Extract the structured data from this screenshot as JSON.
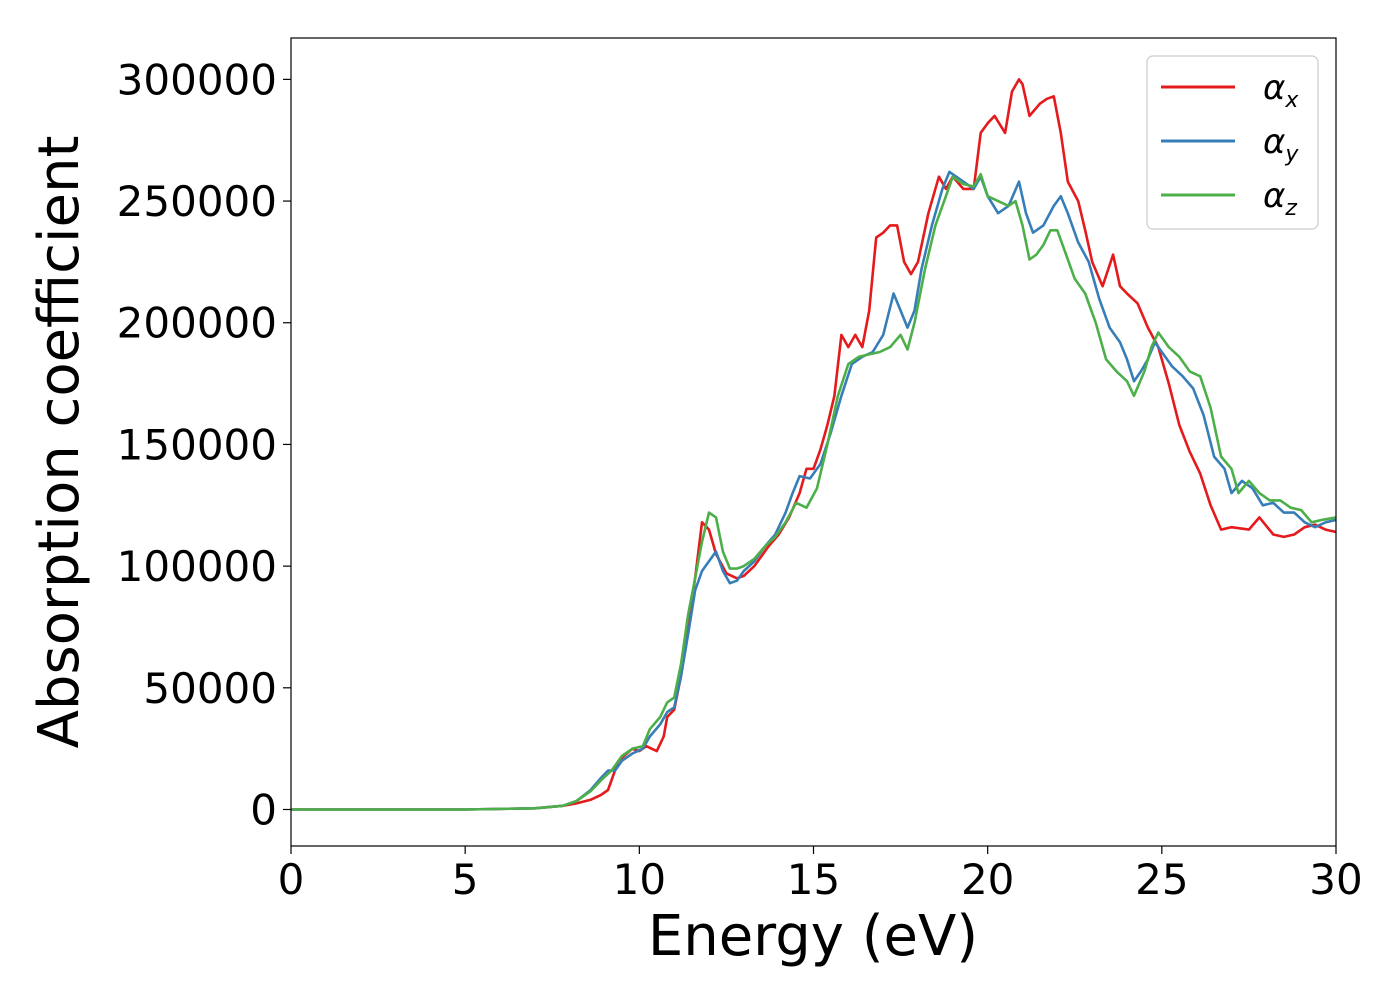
{
  "chart_data": {
    "type": "line",
    "title": "",
    "xlabel": "Energy (eV)",
    "ylabel": "Absorption coefficient",
    "xlim": [
      0,
      30
    ],
    "ylim": [
      -15000,
      317000
    ],
    "x_ticks": [
      0,
      5,
      10,
      15,
      20,
      25,
      30
    ],
    "y_ticks": [
      0,
      50000,
      100000,
      150000,
      200000,
      250000,
      300000
    ],
    "x_tick_labels": [
      "0",
      "5",
      "10",
      "15",
      "20",
      "25",
      "30"
    ],
    "y_tick_labels": [
      "0",
      "50000",
      "100000",
      "150000",
      "200000",
      "250000",
      "300000"
    ],
    "grid": false,
    "legend_position": "top-right",
    "series": [
      {
        "name": "α_x",
        "legend_base": "α",
        "legend_sub": "x",
        "color": "#e41a1c",
        "points": [
          [
            0,
            0
          ],
          [
            5,
            0
          ],
          [
            7,
            500
          ],
          [
            7.8,
            1500
          ],
          [
            8.2,
            2500
          ],
          [
            8.6,
            4000
          ],
          [
            8.9,
            6000
          ],
          [
            9.1,
            8000
          ],
          [
            9.2,
            12000
          ],
          [
            9.4,
            20000
          ],
          [
            9.8,
            25000
          ],
          [
            10.0,
            24000
          ],
          [
            10.2,
            26000
          ],
          [
            10.5,
            24000
          ],
          [
            10.7,
            30000
          ],
          [
            10.8,
            38000
          ],
          [
            11.0,
            41000
          ],
          [
            11.2,
            55000
          ],
          [
            11.4,
            75000
          ],
          [
            11.6,
            95000
          ],
          [
            11.8,
            118000
          ],
          [
            12.0,
            115000
          ],
          [
            12.2,
            105000
          ],
          [
            12.5,
            97000
          ],
          [
            12.8,
            95000
          ],
          [
            13.0,
            96000
          ],
          [
            13.3,
            100000
          ],
          [
            13.7,
            108000
          ],
          [
            14.0,
            113000
          ],
          [
            14.3,
            120000
          ],
          [
            14.6,
            130000
          ],
          [
            14.8,
            140000
          ],
          [
            15.0,
            140000
          ],
          [
            15.2,
            148000
          ],
          [
            15.4,
            158000
          ],
          [
            15.6,
            170000
          ],
          [
            15.8,
            195000
          ],
          [
            16.0,
            190000
          ],
          [
            16.2,
            195000
          ],
          [
            16.4,
            190000
          ],
          [
            16.6,
            205000
          ],
          [
            16.8,
            235000
          ],
          [
            17.0,
            237000
          ],
          [
            17.2,
            240000
          ],
          [
            17.4,
            240000
          ],
          [
            17.6,
            225000
          ],
          [
            17.8,
            220000
          ],
          [
            18.0,
            225000
          ],
          [
            18.3,
            245000
          ],
          [
            18.6,
            260000
          ],
          [
            18.8,
            255000
          ],
          [
            19.0,
            260000
          ],
          [
            19.3,
            255000
          ],
          [
            19.6,
            255000
          ],
          [
            19.8,
            278000
          ],
          [
            20.0,
            282000
          ],
          [
            20.2,
            285000
          ],
          [
            20.5,
            278000
          ],
          [
            20.7,
            295000
          ],
          [
            20.9,
            300000
          ],
          [
            21.0,
            298000
          ],
          [
            21.2,
            285000
          ],
          [
            21.5,
            290000
          ],
          [
            21.7,
            292000
          ],
          [
            21.9,
            293000
          ],
          [
            22.1,
            278000
          ],
          [
            22.3,
            258000
          ],
          [
            22.6,
            250000
          ],
          [
            22.8,
            238000
          ],
          [
            23.0,
            225000
          ],
          [
            23.3,
            215000
          ],
          [
            23.6,
            228000
          ],
          [
            23.8,
            215000
          ],
          [
            24.0,
            212000
          ],
          [
            24.3,
            208000
          ],
          [
            24.6,
            198000
          ],
          [
            24.9,
            190000
          ],
          [
            25.2,
            175000
          ],
          [
            25.5,
            158000
          ],
          [
            25.8,
            147000
          ],
          [
            26.1,
            138000
          ],
          [
            26.4,
            125000
          ],
          [
            26.7,
            115000
          ],
          [
            27.0,
            116000
          ],
          [
            27.5,
            115000
          ],
          [
            27.8,
            120000
          ],
          [
            28.2,
            113000
          ],
          [
            28.5,
            112000
          ],
          [
            28.8,
            113000
          ],
          [
            29.1,
            116000
          ],
          [
            29.4,
            117000
          ],
          [
            29.7,
            115000
          ],
          [
            30.0,
            114000
          ]
        ]
      },
      {
        "name": "α_y",
        "legend_base": "α",
        "legend_sub": "y",
        "color": "#377eb8",
        "points": [
          [
            0,
            0
          ],
          [
            5,
            0
          ],
          [
            7,
            500
          ],
          [
            7.8,
            1500
          ],
          [
            8.2,
            3500
          ],
          [
            8.6,
            8000
          ],
          [
            8.9,
            13000
          ],
          [
            9.1,
            16000
          ],
          [
            9.3,
            16000
          ],
          [
            9.5,
            20000
          ],
          [
            9.8,
            23000
          ],
          [
            10.1,
            25000
          ],
          [
            10.3,
            30000
          ],
          [
            10.6,
            35000
          ],
          [
            10.8,
            40000
          ],
          [
            11.0,
            42000
          ],
          [
            11.2,
            55000
          ],
          [
            11.4,
            72000
          ],
          [
            11.6,
            90000
          ],
          [
            11.8,
            98000
          ],
          [
            12.0,
            102000
          ],
          [
            12.2,
            106000
          ],
          [
            12.4,
            98000
          ],
          [
            12.6,
            93000
          ],
          [
            12.8,
            94000
          ],
          [
            13.0,
            98000
          ],
          [
            13.3,
            102000
          ],
          [
            13.6,
            108000
          ],
          [
            13.9,
            113000
          ],
          [
            14.2,
            122000
          ],
          [
            14.4,
            130000
          ],
          [
            14.6,
            137000
          ],
          [
            14.9,
            136000
          ],
          [
            15.2,
            142000
          ],
          [
            15.5,
            155000
          ],
          [
            15.8,
            170000
          ],
          [
            16.1,
            183000
          ],
          [
            16.4,
            186000
          ],
          [
            16.7,
            188000
          ],
          [
            17.0,
            195000
          ],
          [
            17.3,
            212000
          ],
          [
            17.5,
            205000
          ],
          [
            17.7,
            198000
          ],
          [
            17.9,
            205000
          ],
          [
            18.1,
            222000
          ],
          [
            18.4,
            240000
          ],
          [
            18.7,
            255000
          ],
          [
            18.9,
            262000
          ],
          [
            19.1,
            260000
          ],
          [
            19.3,
            258000
          ],
          [
            19.6,
            255000
          ],
          [
            19.8,
            260000
          ],
          [
            20.0,
            252000
          ],
          [
            20.3,
            245000
          ],
          [
            20.6,
            248000
          ],
          [
            20.9,
            258000
          ],
          [
            21.1,
            245000
          ],
          [
            21.3,
            237000
          ],
          [
            21.6,
            240000
          ],
          [
            21.9,
            248000
          ],
          [
            22.1,
            252000
          ],
          [
            22.3,
            245000
          ],
          [
            22.6,
            233000
          ],
          [
            22.9,
            225000
          ],
          [
            23.2,
            210000
          ],
          [
            23.5,
            198000
          ],
          [
            23.8,
            192000
          ],
          [
            24.0,
            185000
          ],
          [
            24.2,
            176000
          ],
          [
            24.4,
            180000
          ],
          [
            24.6,
            185000
          ],
          [
            24.8,
            192000
          ],
          [
            25.0,
            188000
          ],
          [
            25.3,
            182000
          ],
          [
            25.6,
            178000
          ],
          [
            25.9,
            173000
          ],
          [
            26.2,
            162000
          ],
          [
            26.5,
            145000
          ],
          [
            26.8,
            140000
          ],
          [
            27.0,
            130000
          ],
          [
            27.3,
            135000
          ],
          [
            27.6,
            132000
          ],
          [
            27.9,
            125000
          ],
          [
            28.2,
            126000
          ],
          [
            28.5,
            122000
          ],
          [
            28.8,
            122000
          ],
          [
            29.1,
            118000
          ],
          [
            29.4,
            116000
          ],
          [
            29.7,
            118000
          ],
          [
            30.0,
            119000
          ]
        ]
      },
      {
        "name": "α_z",
        "legend_base": "α",
        "legend_sub": "z",
        "color": "#4daf4a",
        "points": [
          [
            0,
            0
          ],
          [
            5,
            0
          ],
          [
            7,
            500
          ],
          [
            7.8,
            1500
          ],
          [
            8.2,
            3500
          ],
          [
            8.6,
            7500
          ],
          [
            8.9,
            12000
          ],
          [
            9.2,
            16000
          ],
          [
            9.5,
            22000
          ],
          [
            9.8,
            25000
          ],
          [
            10.1,
            26000
          ],
          [
            10.3,
            33000
          ],
          [
            10.6,
            38000
          ],
          [
            10.8,
            44000
          ],
          [
            11.0,
            46000
          ],
          [
            11.2,
            60000
          ],
          [
            11.4,
            80000
          ],
          [
            11.6,
            95000
          ],
          [
            11.8,
            110000
          ],
          [
            12.0,
            122000
          ],
          [
            12.2,
            120000
          ],
          [
            12.4,
            106000
          ],
          [
            12.6,
            99000
          ],
          [
            12.8,
            99000
          ],
          [
            13.0,
            100000
          ],
          [
            13.3,
            103000
          ],
          [
            13.6,
            108000
          ],
          [
            13.9,
            112000
          ],
          [
            14.2,
            118000
          ],
          [
            14.5,
            126000
          ],
          [
            14.8,
            124000
          ],
          [
            15.1,
            132000
          ],
          [
            15.4,
            150000
          ],
          [
            15.7,
            170000
          ],
          [
            16.0,
            183000
          ],
          [
            16.3,
            186000
          ],
          [
            16.6,
            187000
          ],
          [
            16.9,
            188000
          ],
          [
            17.2,
            190000
          ],
          [
            17.5,
            195000
          ],
          [
            17.7,
            189000
          ],
          [
            17.9,
            200000
          ],
          [
            18.2,
            222000
          ],
          [
            18.5,
            240000
          ],
          [
            18.8,
            252000
          ],
          [
            19.0,
            260000
          ],
          [
            19.3,
            257000
          ],
          [
            19.6,
            256000
          ],
          [
            19.8,
            261000
          ],
          [
            20.0,
            252000
          ],
          [
            20.3,
            250000
          ],
          [
            20.6,
            248000
          ],
          [
            20.8,
            250000
          ],
          [
            21.0,
            240000
          ],
          [
            21.2,
            226000
          ],
          [
            21.4,
            228000
          ],
          [
            21.6,
            232000
          ],
          [
            21.8,
            238000
          ],
          [
            22.0,
            238000
          ],
          [
            22.2,
            230000
          ],
          [
            22.5,
            218000
          ],
          [
            22.8,
            212000
          ],
          [
            23.1,
            200000
          ],
          [
            23.4,
            185000
          ],
          [
            23.7,
            180000
          ],
          [
            24.0,
            176000
          ],
          [
            24.2,
            170000
          ],
          [
            24.5,
            180000
          ],
          [
            24.7,
            190000
          ],
          [
            24.9,
            196000
          ],
          [
            25.2,
            190000
          ],
          [
            25.5,
            186000
          ],
          [
            25.8,
            180000
          ],
          [
            26.1,
            178000
          ],
          [
            26.4,
            165000
          ],
          [
            26.7,
            145000
          ],
          [
            27.0,
            140000
          ],
          [
            27.2,
            130000
          ],
          [
            27.5,
            135000
          ],
          [
            27.8,
            130000
          ],
          [
            28.1,
            127000
          ],
          [
            28.4,
            127000
          ],
          [
            28.7,
            124000
          ],
          [
            29.0,
            123000
          ],
          [
            29.3,
            118000
          ],
          [
            29.6,
            119000
          ],
          [
            30.0,
            120000
          ]
        ]
      }
    ]
  }
}
